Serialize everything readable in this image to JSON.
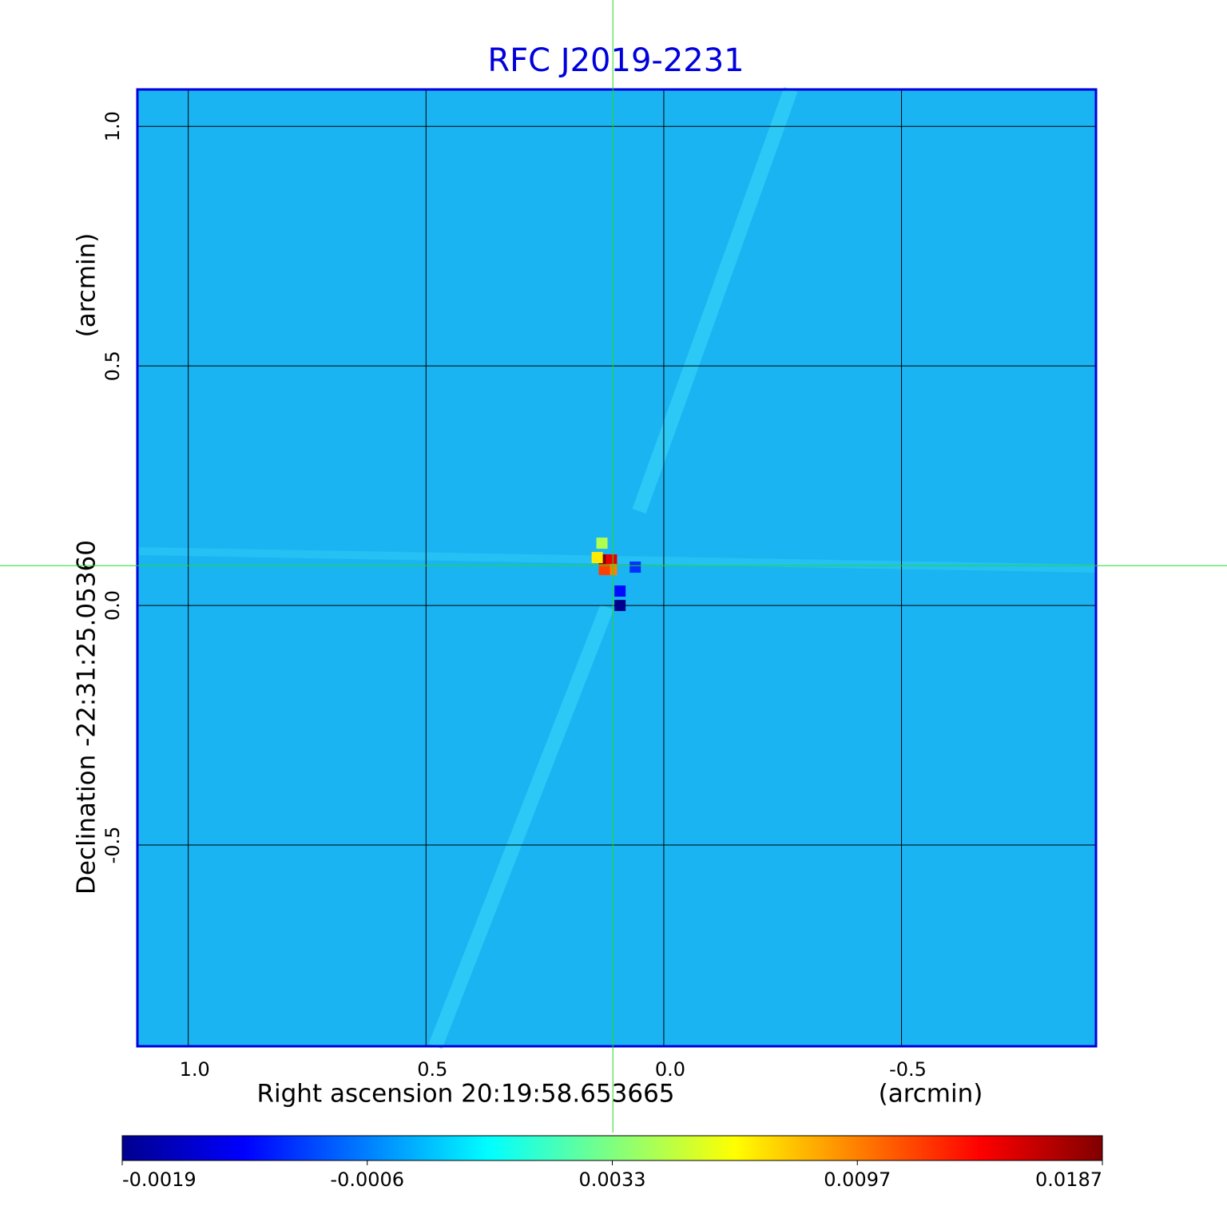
{
  "chart_data": {
    "type": "heatmap",
    "title": "RFC J2019-2231",
    "x_label": "Right ascension  20:19:58.653665",
    "x_unit": "(arcmin)",
    "y_label": "Declination  -22:31:25.05360",
    "y_unit": "(arcmin)",
    "xlim": [
      1.107,
      -0.909
    ],
    "ylim": [
      -0.92,
      1.077
    ],
    "xticks": [
      {
        "value": 1,
        "label": "1.0"
      },
      {
        "value": 0.5,
        "label": "0.5"
      },
      {
        "value": 0,
        "label": "0.0"
      },
      {
        "value": -0.5,
        "label": "-0.5"
      }
    ],
    "yticks": [
      {
        "value": 1,
        "label": "1.0"
      },
      {
        "value": 0.5,
        "label": "0.5"
      },
      {
        "value": 0,
        "label": "0.0"
      },
      {
        "value": -0.5,
        "label": "-0.5"
      }
    ],
    "grid": true,
    "crosshair": {
      "x": 0.107,
      "y": 0.083
    },
    "source": {
      "x": [
        0.125,
        0.11,
        0.11,
        0.14,
        0.125,
        0.13,
        0.092,
        0.092,
        0.06
      ],
      "y": [
        0.095,
        0.095,
        0.075,
        0.1,
        0.075,
        0.13,
        0.0,
        0.03,
        0.08
      ],
      "values": [
        0.0187,
        0.015,
        0.0097,
        0.007,
        0.012,
        0.0045,
        -0.0019,
        -0.0012,
        -0.001
      ]
    },
    "colorbar_ticks": [
      -0.0019,
      -0.0006,
      0.0033,
      0.0097,
      0.0187
    ]
  }
}
